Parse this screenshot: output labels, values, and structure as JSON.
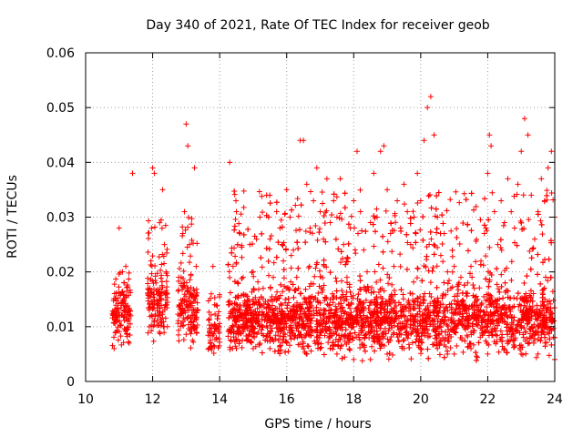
{
  "chart_data": {
    "type": "scatter",
    "title": "Day 340 of 2021, Rate Of TEC Index for receiver geob",
    "xlabel": "GPS time / hours",
    "ylabel": "ROTI / TECUs",
    "xlim": [
      10,
      24
    ],
    "ylim": [
      0,
      0.06
    ],
    "x_ticks": [
      10,
      12,
      14,
      16,
      18,
      20,
      22,
      24
    ],
    "x_tick_labels": [
      "10",
      "12",
      "14",
      "16",
      "18",
      "20",
      "22",
      "24"
    ],
    "y_ticks": [
      0,
      0.01,
      0.02,
      0.03,
      0.04,
      0.05,
      0.06
    ],
    "y_tick_labels": [
      "0",
      "0.01",
      "0.02",
      "0.03",
      "0.04",
      "0.05",
      "0.06"
    ],
    "grid": true,
    "marker": "+",
    "marker_color": "#ff0000",
    "series": [
      {
        "name": "ROTI",
        "points": [
          [
            10.85,
            0.006
          ],
          [
            10.9,
            0.009
          ],
          [
            10.95,
            0.012
          ],
          [
            11.0,
            0.028
          ],
          [
            11.05,
            0.016
          ],
          [
            11.1,
            0.02
          ],
          [
            11.15,
            0.018
          ],
          [
            11.2,
            0.021
          ],
          [
            11.25,
            0.011
          ],
          [
            11.3,
            0.007
          ],
          [
            11.4,
            0.038
          ],
          [
            11.9,
            0.01
          ],
          [
            11.95,
            0.022
          ],
          [
            12.0,
            0.039
          ],
          [
            12.05,
            0.038
          ],
          [
            12.1,
            0.018
          ],
          [
            12.15,
            0.012
          ],
          [
            12.2,
            0.009
          ],
          [
            12.25,
            0.015
          ],
          [
            12.3,
            0.035
          ],
          [
            12.35,
            0.025
          ],
          [
            12.4,
            0.02
          ],
          [
            12.8,
            0.012
          ],
          [
            12.85,
            0.019
          ],
          [
            12.9,
            0.027
          ],
          [
            12.95,
            0.031
          ],
          [
            13.0,
            0.047
          ],
          [
            13.05,
            0.043
          ],
          [
            13.1,
            0.025
          ],
          [
            13.15,
            0.016
          ],
          [
            13.2,
            0.012
          ],
          [
            13.25,
            0.039
          ],
          [
            13.3,
            0.021
          ],
          [
            13.7,
            0.009
          ],
          [
            13.75,
            0.016
          ],
          [
            13.8,
            0.021
          ],
          [
            13.85,
            0.014
          ],
          [
            13.9,
            0.008
          ],
          [
            13.95,
            0.012
          ],
          [
            14.3,
            0.04
          ],
          [
            14.4,
            0.021
          ],
          [
            14.5,
            0.031
          ],
          [
            14.6,
            0.027
          ],
          [
            14.7,
            0.019
          ],
          [
            14.8,
            0.013
          ],
          [
            14.9,
            0.025
          ],
          [
            15.0,
            0.02
          ],
          [
            15.1,
            0.026
          ],
          [
            15.2,
            0.03
          ],
          [
            15.3,
            0.017
          ],
          [
            15.4,
            0.034
          ],
          [
            15.5,
            0.026
          ],
          [
            15.6,
            0.019
          ],
          [
            15.7,
            0.031
          ],
          [
            15.8,
            0.028
          ],
          [
            15.9,
            0.022
          ],
          [
            16.0,
            0.035
          ],
          [
            16.1,
            0.03
          ],
          [
            16.2,
            0.024
          ],
          [
            16.3,
            0.019
          ],
          [
            16.4,
            0.044
          ],
          [
            16.5,
            0.044
          ],
          [
            16.6,
            0.036
          ],
          [
            16.7,
            0.028
          ],
          [
            16.8,
            0.033
          ],
          [
            16.9,
            0.039
          ],
          [
            17.0,
            0.031
          ],
          [
            17.1,
            0.026
          ],
          [
            17.2,
            0.037
          ],
          [
            17.3,
            0.029
          ],
          [
            17.4,
            0.033
          ],
          [
            17.5,
            0.03
          ],
          [
            17.6,
            0.037
          ],
          [
            17.7,
            0.025
          ],
          [
            17.8,
            0.019
          ],
          [
            17.9,
            0.028
          ],
          [
            18.0,
            0.033
          ],
          [
            18.1,
            0.042
          ],
          [
            18.2,
            0.031
          ],
          [
            18.3,
            0.024
          ],
          [
            18.4,
            0.02
          ],
          [
            18.5,
            0.029
          ],
          [
            18.6,
            0.038
          ],
          [
            18.7,
            0.03
          ],
          [
            18.8,
            0.042
          ],
          [
            18.9,
            0.043
          ],
          [
            19.0,
            0.035
          ],
          [
            19.1,
            0.027
          ],
          [
            19.2,
            0.021
          ],
          [
            19.3,
            0.033
          ],
          [
            19.4,
            0.028
          ],
          [
            19.5,
            0.036
          ],
          [
            19.6,
            0.031
          ],
          [
            19.7,
            0.025
          ],
          [
            19.8,
            0.03
          ],
          [
            19.9,
            0.038
          ],
          [
            20.0,
            0.033
          ],
          [
            20.1,
            0.044
          ],
          [
            20.2,
            0.05
          ],
          [
            20.3,
            0.052
          ],
          [
            20.4,
            0.045
          ],
          [
            20.5,
            0.03
          ],
          [
            20.6,
            0.023
          ],
          [
            20.7,
            0.027
          ],
          [
            20.8,
            0.02
          ],
          [
            20.9,
            0.017
          ],
          [
            21.0,
            0.021
          ],
          [
            21.1,
            0.016
          ],
          [
            21.2,
            0.019
          ],
          [
            21.3,
            0.014
          ],
          [
            21.4,
            0.018
          ],
          [
            21.5,
            0.021
          ],
          [
            21.6,
            0.017
          ],
          [
            21.7,
            0.015
          ],
          [
            21.8,
            0.022
          ],
          [
            21.9,
            0.027
          ],
          [
            22.0,
            0.038
          ],
          [
            22.05,
            0.045
          ],
          [
            22.1,
            0.043
          ],
          [
            22.2,
            0.031
          ],
          [
            22.3,
            0.025
          ],
          [
            22.4,
            0.033
          ],
          [
            22.5,
            0.029
          ],
          [
            22.6,
            0.037
          ],
          [
            22.7,
            0.031
          ],
          [
            22.8,
            0.028
          ],
          [
            22.9,
            0.036
          ],
          [
            23.0,
            0.042
          ],
          [
            23.1,
            0.048
          ],
          [
            23.2,
            0.045
          ],
          [
            23.3,
            0.034
          ],
          [
            23.4,
            0.026
          ],
          [
            23.5,
            0.031
          ],
          [
            23.6,
            0.037
          ],
          [
            23.7,
            0.033
          ],
          [
            23.8,
            0.039
          ],
          [
            23.9,
            0.042
          ],
          [
            24.0,
            0.03
          ],
          [
            15.0,
            0.015
          ],
          [
            15.5,
            0.013
          ],
          [
            16.0,
            0.012
          ],
          [
            16.5,
            0.011
          ],
          [
            17.0,
            0.012
          ],
          [
            17.5,
            0.012
          ],
          [
            18.0,
            0.01
          ],
          [
            18.5,
            0.009
          ],
          [
            19.0,
            0.011
          ],
          [
            19.5,
            0.012
          ],
          [
            20.0,
            0.011
          ],
          [
            20.5,
            0.01
          ],
          [
            21.0,
            0.01
          ],
          [
            21.5,
            0.009
          ],
          [
            22.0,
            0.01
          ],
          [
            22.5,
            0.011
          ],
          [
            23.0,
            0.01
          ],
          [
            23.5,
            0.009
          ],
          [
            24.0,
            0.008
          ],
          [
            14.5,
            0.006
          ],
          [
            15.0,
            0.006
          ],
          [
            15.5,
            0.006
          ],
          [
            16.0,
            0.007
          ],
          [
            16.5,
            0.006
          ],
          [
            17.0,
            0.006
          ],
          [
            17.5,
            0.005
          ],
          [
            18.0,
            0.004
          ],
          [
            18.5,
            0.004
          ],
          [
            19.0,
            0.005
          ],
          [
            19.5,
            0.006
          ],
          [
            20.0,
            0.006
          ],
          [
            20.5,
            0.006
          ],
          [
            21.0,
            0.005
          ],
          [
            21.5,
            0.006
          ],
          [
            22.0,
            0.005
          ],
          [
            22.5,
            0.006
          ],
          [
            23.0,
            0.005
          ],
          [
            23.5,
            0.005
          ],
          [
            24.0,
            0.004
          ]
        ]
      }
    ],
    "density_ranges": [
      [
        10.8,
        11.35,
        0.004,
        0.012,
        0.02,
        130
      ],
      [
        11.85,
        12.45,
        0.005,
        0.014,
        0.03,
        150
      ],
      [
        12.75,
        13.35,
        0.004,
        0.013,
        0.03,
        160
      ],
      [
        13.65,
        14.0,
        0.004,
        0.009,
        0.016,
        60
      ],
      [
        14.25,
        24.0,
        0.003,
        0.011,
        0.035,
        3400
      ]
    ]
  }
}
